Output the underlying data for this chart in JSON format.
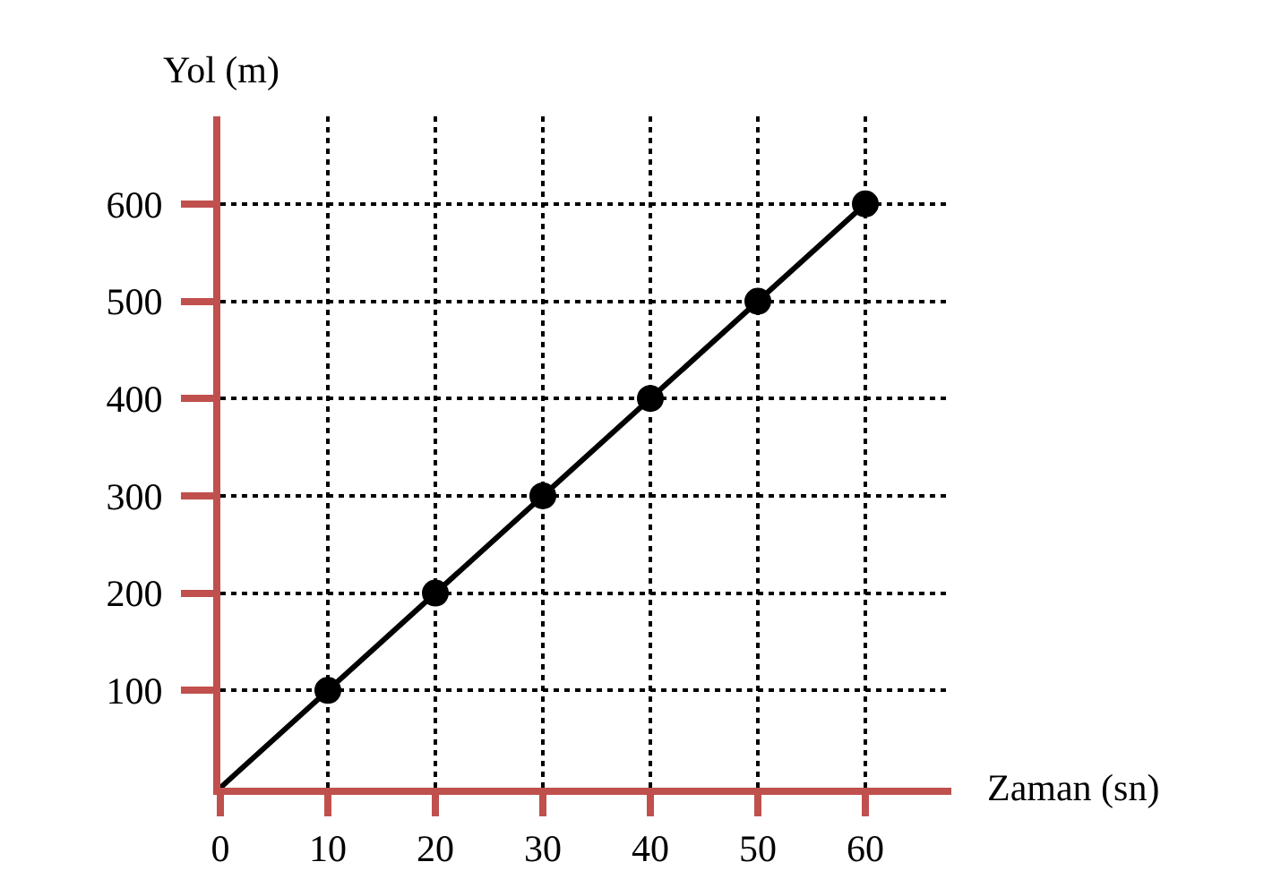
{
  "chart_data": {
    "type": "line",
    "xlabel": "Zaman (sn)",
    "ylabel": "Yol (m)",
    "xlim": [
      0,
      68
    ],
    "ylim": [
      0,
      690
    ],
    "xticks": [
      0,
      10,
      20,
      30,
      40,
      50,
      60
    ],
    "yticks": [
      100,
      200,
      300,
      400,
      500,
      600
    ],
    "grid": true,
    "line_style": "solid",
    "marker": "circle",
    "series": [
      {
        "color": "#000000",
        "x": [
          0,
          60
        ],
        "values": [
          0,
          600
        ],
        "marker": "none"
      },
      {
        "type": "scatter",
        "color": "#000000",
        "x": [
          10,
          20,
          30,
          40,
          50,
          60
        ],
        "values": [
          100,
          200,
          300,
          400,
          500,
          600
        ]
      }
    ]
  }
}
